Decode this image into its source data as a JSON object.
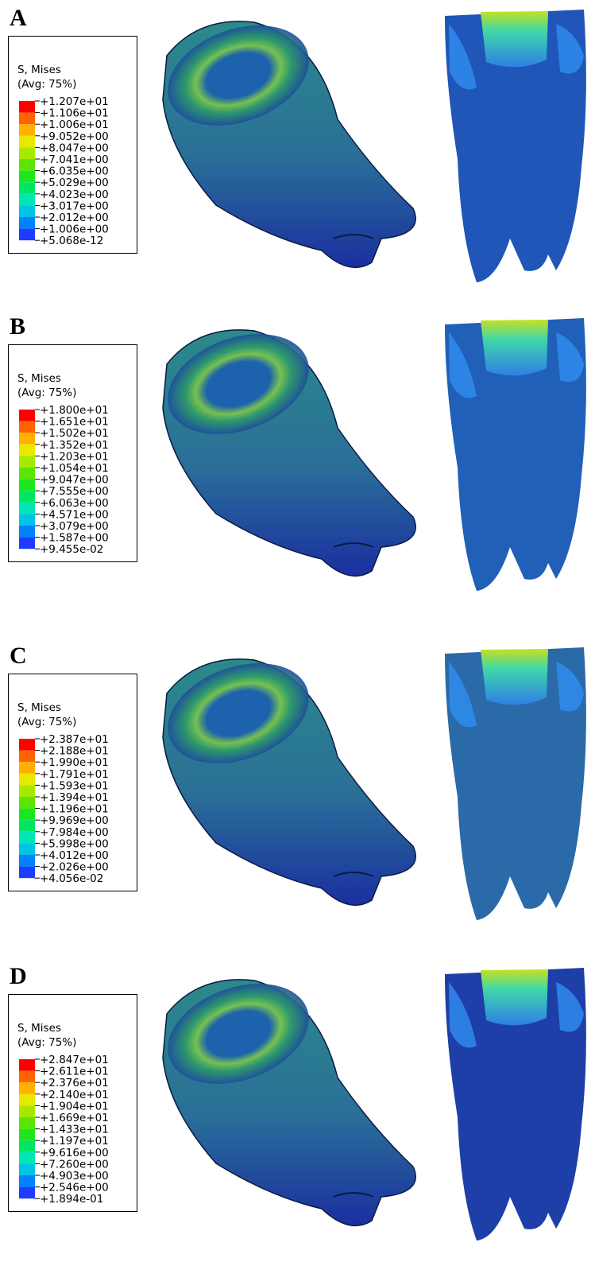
{
  "panels": [
    {
      "label": "A",
      "legend": {
        "title": "S, Mises",
        "subtitle": "(Avg: 75%)",
        "ticks": [
          "+1.207e+01",
          "+1.106e+01",
          "+1.006e+01",
          "+9.052e+00",
          "+8.047e+00",
          "+7.041e+00",
          "+6.035e+00",
          "+5.029e+00",
          "+4.023e+00",
          "+3.017e+00",
          "+2.012e+00",
          "+1.006e+00",
          "+5.068e-12"
        ]
      }
    },
    {
      "label": "B",
      "legend": {
        "title": "S, Mises",
        "subtitle": "(Avg: 75%)",
        "ticks": [
          "+1.800e+01",
          "+1.651e+01",
          "+1.502e+01",
          "+1.352e+01",
          "+1.203e+01",
          "+1.054e+01",
          "+9.047e+00",
          "+7.555e+00",
          "+6.063e+00",
          "+4.571e+00",
          "+3.079e+00",
          "+1.587e+00",
          "+9.455e-02"
        ]
      }
    },
    {
      "label": "C",
      "legend": {
        "title": "S, Mises",
        "subtitle": "(Avg: 75%)",
        "ticks": [
          "+2.387e+01",
          "+2.188e+01",
          "+1.990e+01",
          "+1.791e+01",
          "+1.593e+01",
          "+1.394e+01",
          "+1.196e+01",
          "+9.969e+00",
          "+7.984e+00",
          "+5.998e+00",
          "+4.012e+00",
          "+2.026e+00",
          "+4.056e-02"
        ]
      }
    },
    {
      "label": "D",
      "legend": {
        "title": "S, Mises",
        "subtitle": "(Avg: 75%)",
        "ticks": [
          "+2.847e+01",
          "+2.611e+01",
          "+2.376e+01",
          "+2.140e+01",
          "+1.904e+01",
          "+1.669e+01",
          "+1.433e+01",
          "+1.197e+01",
          "+9.616e+00",
          "+7.260e+00",
          "+4.903e+00",
          "+2.546e+00",
          "+1.894e-01"
        ]
      }
    }
  ]
}
